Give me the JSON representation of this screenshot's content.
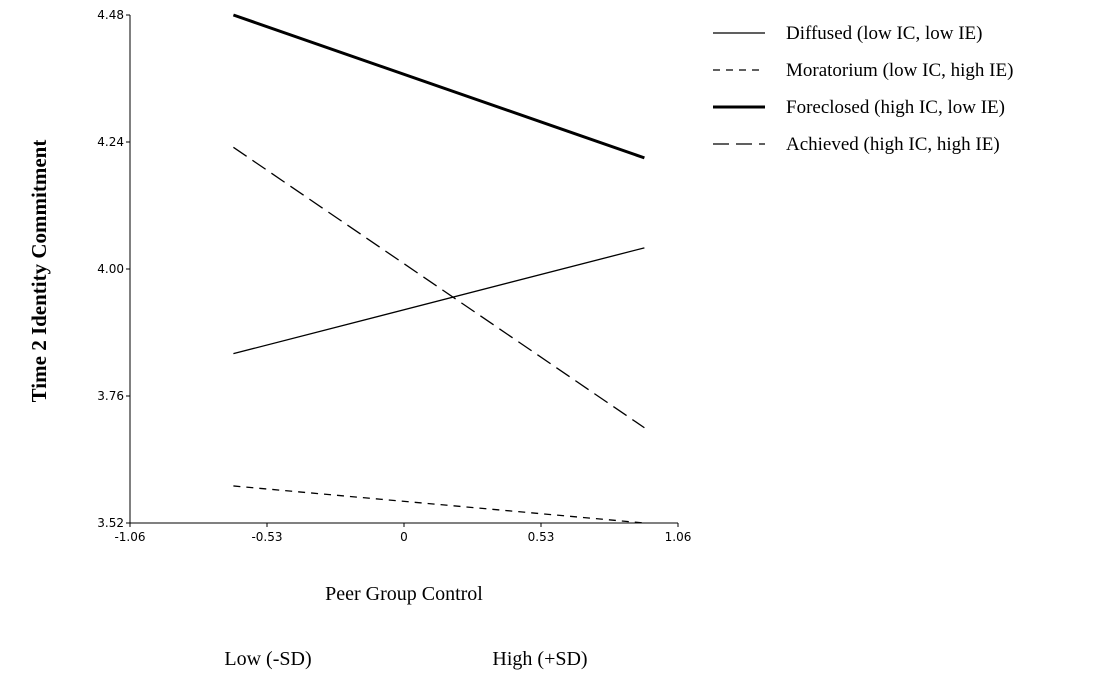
{
  "chart_data": {
    "type": "line",
    "xlabel": "Peer Group Control",
    "ylabel": "Time 2 Identity Commitment",
    "x_tick_labels": [
      "-1.06",
      "-0.53",
      "0",
      "0.53",
      "1.06"
    ],
    "y_tick_labels": [
      "3.52",
      "3.76",
      "4.00",
      "4.24",
      "4.48"
    ],
    "xlim": [
      -1.06,
      1.06
    ],
    "ylim": [
      3.52,
      4.48
    ],
    "x": [
      -0.66,
      0.93
    ],
    "x_category_labels": [
      "Low (-SD)",
      "High (+SD)"
    ],
    "series": [
      {
        "name": "Diffused (low IC, low IE)",
        "values": [
          3.84,
          4.04
        ],
        "style": "thin-solid"
      },
      {
        "name": "Moratorium (low IC, high IE)",
        "values": [
          3.59,
          3.52
        ],
        "style": "short-dash"
      },
      {
        "name": "Foreclosed (high IC, low IE)",
        "values": [
          4.48,
          4.21
        ],
        "style": "thick-solid"
      },
      {
        "name": "Achieved (high IC, high IE)",
        "values": [
          4.23,
          3.7
        ],
        "style": "long-dash"
      }
    ],
    "grid": false,
    "legend_position": "top-right"
  }
}
